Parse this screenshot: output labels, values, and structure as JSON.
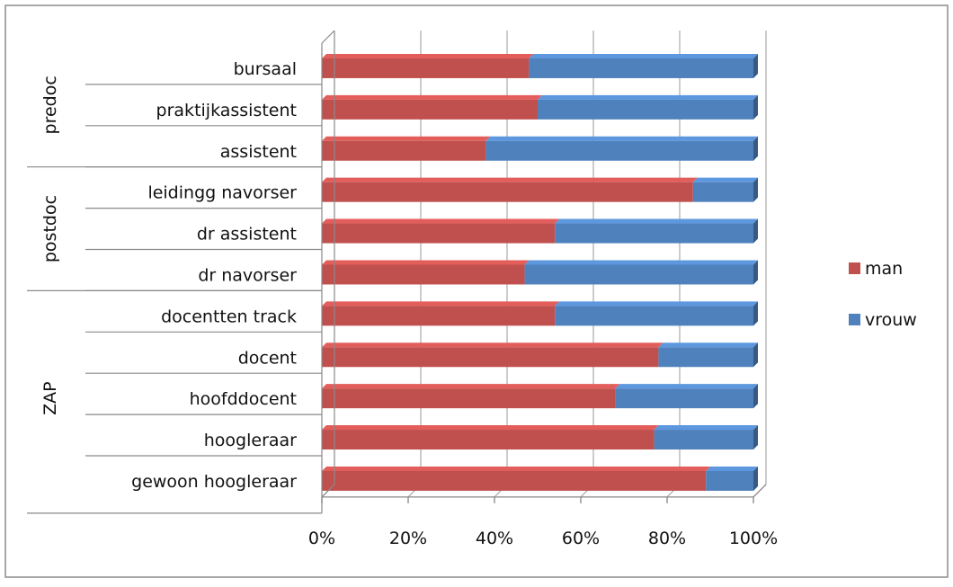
{
  "chart_data": {
    "type": "bar",
    "stacked": "percent",
    "orientation": "horizontal",
    "title": "",
    "xlabel": "",
    "ylabel": "",
    "xlim": [
      0,
      100
    ],
    "x_ticks": [
      "0%",
      "20%",
      "40%",
      "60%",
      "80%",
      "100%"
    ],
    "grid": true,
    "legend_position": "right",
    "groups": [
      {
        "name": "predoc",
        "categories": [
          "bursaal",
          "praktijkassistent",
          "assistent"
        ]
      },
      {
        "name": "postdoc",
        "categories": [
          "leidingg navorser",
          "dr assistent",
          "dr navorser"
        ]
      },
      {
        "name": "ZAP",
        "categories": [
          "docentten track",
          "docent",
          "hoofddocent",
          "hoogleraar",
          "gewoon hoogleraar"
        ]
      }
    ],
    "categories": [
      "bursaal",
      "praktijkassistent",
      "assistent",
      "leidingg navorser",
      "dr assistent",
      "dr navorser",
      "docentten track",
      "docent",
      "hoofddocent",
      "hoogleraar",
      "gewoon hoogleraar"
    ],
    "series": [
      {
        "name": "man",
        "color": "#c0504d",
        "values": [
          48,
          50,
          38,
          86,
          54,
          47,
          54,
          78,
          68,
          77,
          89
        ]
      },
      {
        "name": "vrouw",
        "color": "#4f81bd",
        "values": [
          52,
          50,
          62,
          14,
          46,
          53,
          46,
          22,
          32,
          23,
          11
        ]
      }
    ]
  }
}
